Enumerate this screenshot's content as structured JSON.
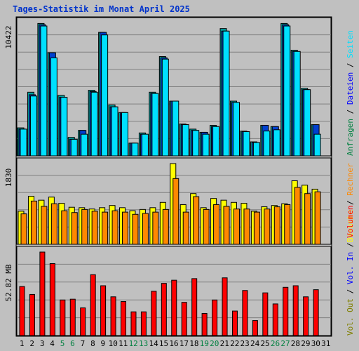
{
  "title": "Tages-Statistik im Monat April 2025",
  "colors": {
    "frame_bg": "#c0c0c0",
    "title": "#0033cc",
    "hits": "#0040d0",
    "files": "#00e0ff",
    "pages": "#00a0a0",
    "visits": "#ffff00",
    "sites": "#ff8800",
    "volume": "#ff0000",
    "weekend": "#008040",
    "day": "#000000"
  },
  "chart_data": [
    {
      "type": "bar",
      "panel": "top",
      "max_label": "10422",
      "legend": [
        {
          "label": "Anfragen",
          "color": "#008040"
        },
        {
          "label": "Dateien",
          "color": "#0000ff"
        },
        {
          "label": "Seiten",
          "color": "#00e0ff"
        }
      ],
      "x": [
        1,
        2,
        3,
        4,
        5,
        6,
        7,
        8,
        9,
        10,
        11,
        12,
        13,
        14,
        15,
        16,
        17,
        18,
        19,
        20,
        21,
        22,
        23,
        24,
        25,
        26,
        27,
        28,
        29,
        30
      ],
      "series": [
        {
          "name": "Anfragen",
          "values": [
            2200,
            5000,
            10400,
            8100,
            4750,
            1450,
            2000,
            5150,
            9700,
            4000,
            3400,
            1000,
            1800,
            5000,
            7800,
            4300,
            2500,
            2100,
            1850,
            2400,
            10000,
            4300,
            1940,
            1100,
            2400,
            2300,
            10400,
            8300,
            5300,
            2450
          ]
        },
        {
          "name": "Dateien",
          "values": [
            2100,
            4800,
            10300,
            8100,
            4600,
            1300,
            2000,
            5050,
            9700,
            3850,
            3400,
            1000,
            1700,
            4900,
            7700,
            4300,
            2450,
            2000,
            1850,
            2300,
            9800,
            4200,
            1900,
            1050,
            2400,
            2300,
            10300,
            8200,
            5200,
            2450
          ]
        },
        {
          "name": "Seiten",
          "values": [
            2100,
            4700,
            10200,
            7700,
            4600,
            1300,
            1700,
            5000,
            9500,
            3850,
            3400,
            1000,
            1700,
            4900,
            7600,
            4300,
            2450,
            2000,
            1700,
            2300,
            9800,
            4200,
            1900,
            1050,
            1950,
            2050,
            10200,
            8200,
            5200,
            1700
          ]
        }
      ],
      "ylim": [
        0,
        10422
      ]
    },
    {
      "type": "bar",
      "panel": "middle",
      "max_label": "1830",
      "legend": [
        {
          "label": "Besuche",
          "color": "#ffff00"
        },
        {
          "label": "Rechner",
          "color": "#ff8800"
        }
      ],
      "x": [
        1,
        2,
        3,
        4,
        5,
        6,
        7,
        8,
        9,
        10,
        11,
        12,
        13,
        14,
        15,
        16,
        17,
        18,
        19,
        20,
        21,
        22,
        23,
        24,
        25,
        26,
        27,
        28,
        29,
        30
      ],
      "series": [
        {
          "name": "Besuche",
          "values": [
            750,
            1090,
            1000,
            1070,
            930,
            840,
            830,
            800,
            830,
            880,
            830,
            760,
            790,
            830,
            950,
            1830,
            900,
            1150,
            830,
            1040,
            1000,
            950,
            930,
            750,
            850,
            880,
            920,
            1440,
            1340,
            1250
          ]
        },
        {
          "name": "Rechner",
          "values": [
            690,
            980,
            860,
            920,
            760,
            720,
            790,
            750,
            730,
            760,
            730,
            680,
            700,
            730,
            790,
            1490,
            730,
            1080,
            790,
            900,
            860,
            800,
            800,
            730,
            800,
            850,
            900,
            1290,
            1150,
            1190
          ]
        }
      ],
      "ylim": [
        0,
        1830
      ]
    },
    {
      "type": "bar",
      "panel": "bottom",
      "max_label": "52.82 MB",
      "legend": [
        {
          "label": "Vol. Out",
          "color": "#808000"
        },
        {
          "label": "Vol. In",
          "color": "#0000ff"
        },
        {
          "label": "Volumen",
          "color": "#ff0000"
        }
      ],
      "x": [
        1,
        2,
        3,
        4,
        5,
        6,
        7,
        8,
        9,
        10,
        11,
        12,
        13,
        14,
        15,
        16,
        17,
        18,
        19,
        20,
        21,
        22,
        23,
        24,
        25,
        26,
        27,
        28,
        29,
        30
      ],
      "series": [
        {
          "name": "Volumen",
          "values": [
            31,
            26,
            52.8,
            45.5,
            22.5,
            23,
            17.5,
            38.5,
            31.5,
            24.5,
            21.5,
            15,
            15,
            28,
            33,
            35,
            21,
            36,
            14,
            22.5,
            36.5,
            15.5,
            28.5,
            9.5,
            27,
            20,
            30.5,
            31.5,
            24.5,
            29
          ]
        }
      ],
      "ylim": [
        0,
        52.82
      ]
    }
  ],
  "days": [
    "1",
    "2",
    "3",
    "4",
    "5",
    "6",
    "7",
    "8",
    "9",
    "10",
    "11",
    "12",
    "13",
    "14",
    "15",
    "16",
    "17",
    "18",
    "19",
    "20",
    "21",
    "22",
    "23",
    "24",
    "25",
    "26",
    "27",
    "28",
    "29",
    "30",
    "31"
  ],
  "weekend_days": [
    "5",
    "6",
    "12",
    "13",
    "19",
    "20",
    "26",
    "27"
  ]
}
